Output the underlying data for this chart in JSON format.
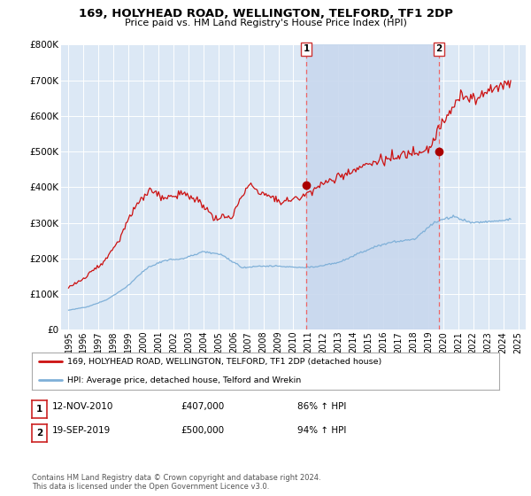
{
  "title": "169, HOLYHEAD ROAD, WELLINGTON, TELFORD, TF1 2DP",
  "subtitle": "Price paid vs. HM Land Registry's House Price Index (HPI)",
  "background_color": "#ffffff",
  "plot_bg_color": "#dce8f5",
  "shade_color": "#c8d8ee",
  "legend_line1": "169, HOLYHEAD ROAD, WELLINGTON, TELFORD, TF1 2DP (detached house)",
  "legend_line2": "HPI: Average price, detached house, Telford and Wrekin",
  "annotation1_label": "1",
  "annotation1_date": "12-NOV-2010",
  "annotation1_price": "£407,000",
  "annotation1_hpi": "86% ↑ HPI",
  "annotation2_label": "2",
  "annotation2_date": "19-SEP-2019",
  "annotation2_price": "£500,000",
  "annotation2_hpi": "94% ↑ HPI",
  "footer": "Contains HM Land Registry data © Crown copyright and database right 2024.\nThis data is licensed under the Open Government Licence v3.0.",
  "hpi_color": "#7fb0d8",
  "price_color": "#cc1111",
  "vline_color": "#ee6666",
  "marker_color": "#aa0000",
  "ylim": [
    0,
    800000
  ],
  "yticks": [
    0,
    100000,
    200000,
    300000,
    400000,
    500000,
    600000,
    700000,
    800000
  ],
  "sale1_x": 2010.87,
  "sale1_y": 407000,
  "sale2_x": 2019.71,
  "sale2_y": 500000,
  "xlim": [
    1994.5,
    2025.5
  ],
  "xticks": [
    1995,
    1996,
    1997,
    1998,
    1999,
    2000,
    2001,
    2002,
    2003,
    2004,
    2005,
    2006,
    2007,
    2008,
    2009,
    2010,
    2011,
    2012,
    2013,
    2014,
    2015,
    2016,
    2017,
    2018,
    2019,
    2020,
    2021,
    2022,
    2023,
    2024,
    2025
  ]
}
